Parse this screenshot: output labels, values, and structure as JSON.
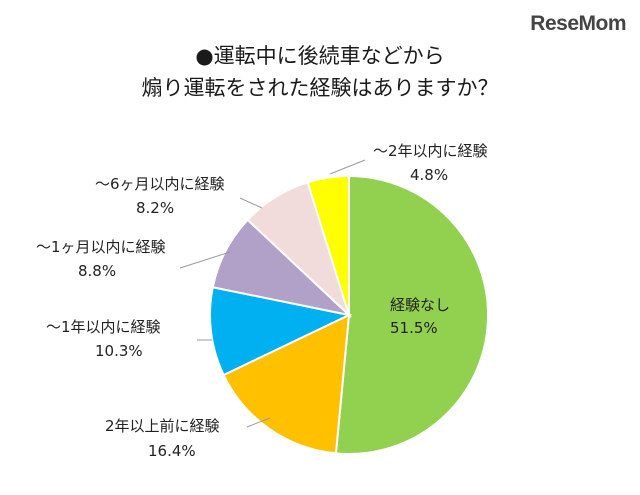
{
  "brand": {
    "logo_text": "ReseMom"
  },
  "chart_data": {
    "type": "pie",
    "title_line1": "●運転中に後続車などから",
    "title_line2": "煽り運転をされた経験はありますか？",
    "start_angle_deg": 0,
    "direction": "clockwise",
    "slices": [
      {
        "label": "経験なし",
        "value": 51.5,
        "display": "51.5%",
        "color": "#92D050"
      },
      {
        "label": "2年以上前に経験",
        "value": 16.4,
        "display": "16.4%",
        "color": "#FFC000"
      },
      {
        "label": "～1年以内に経験",
        "value": 10.3,
        "display": "10.3%",
        "color": "#00B0F0"
      },
      {
        "label": "～1ヶ月以内に経験",
        "value": 8.8,
        "display": "8.8%",
        "color": "#B1A0C7"
      },
      {
        "label": "～6ヶ月以内に経験",
        "value": 8.2,
        "display": "8.2%",
        "color": "#F2DCDB"
      },
      {
        "label": "～2年以内に経験",
        "value": 4.8,
        "display": "4.8%",
        "color": "#FFFF00"
      }
    ]
  }
}
